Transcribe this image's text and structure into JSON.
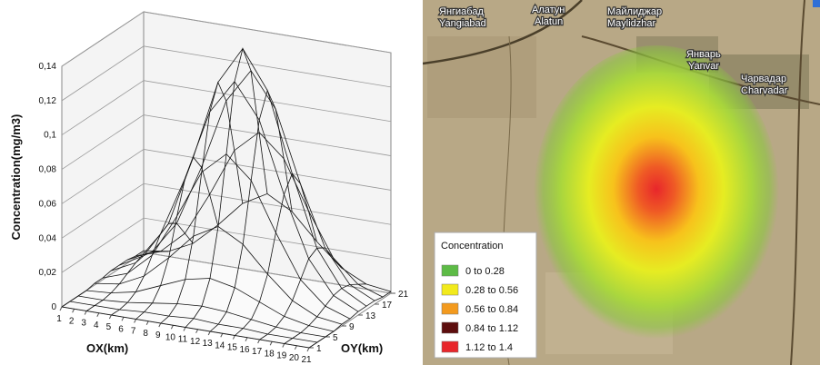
{
  "chart_data": [
    {
      "type": "surface",
      "zlabel": "Concentration(mg/m3)",
      "xlabel": "OX(km)",
      "ylabel": "OY(km)",
      "xlim": [
        1,
        21
      ],
      "ylim": [
        1,
        21
      ],
      "zlim": [
        0,
        0.14
      ],
      "xticks": [
        1,
        2,
        3,
        4,
        5,
        6,
        7,
        8,
        9,
        10,
        11,
        12,
        13,
        14,
        15,
        16,
        17,
        18,
        19,
        20,
        21
      ],
      "yticks": [
        1,
        5,
        9,
        13,
        17,
        21
      ],
      "zticks": [
        0,
        {
          "value": 0.02,
          "label": "0,02"
        },
        {
          "value": 0.04,
          "label": "0,04"
        },
        {
          "value": 0.06,
          "label": "0,06"
        },
        {
          "value": 0.08,
          "label": "0,08"
        },
        {
          "value": 0.1,
          "label": "0,1"
        },
        {
          "value": 0.12,
          "label": "0,12"
        },
        {
          "value": 0.14,
          "label": "0,14"
        }
      ],
      "x": [
        1,
        3,
        5,
        7,
        9,
        11,
        13,
        15,
        17,
        19,
        21
      ],
      "y": [
        1,
        3,
        5,
        7,
        9,
        11,
        13,
        15,
        17,
        19,
        21
      ],
      "z": [
        [
          0,
          0,
          0,
          0,
          0,
          0,
          0,
          0,
          0,
          0,
          0
        ],
        [
          0,
          0,
          0,
          0.001,
          0.001,
          0.002,
          0.001,
          0.001,
          0,
          0,
          0
        ],
        [
          0,
          0,
          0.001,
          0.003,
          0.005,
          0.006,
          0.005,
          0.003,
          0.001,
          0,
          0
        ],
        [
          0,
          0.001,
          0.004,
          0.01,
          0.016,
          0.019,
          0.016,
          0.01,
          0.004,
          0.001,
          0
        ],
        [
          0.001,
          0.003,
          0.01,
          0.023,
          0.038,
          0.046,
          0.038,
          0.023,
          0.01,
          0.003,
          0.001
        ],
        [
          0.001,
          0.006,
          0.019,
          0.044,
          0.072,
          0.085,
          0.072,
          0.044,
          0.019,
          0.006,
          0.001
        ],
        [
          0.002,
          0.009,
          0.028,
          0.063,
          0.104,
          0.124,
          0.104,
          0.063,
          0.028,
          0.009,
          0.002
        ],
        [
          0.002,
          0.01,
          0.031,
          0.072,
          0.118,
          0.14,
          0.118,
          0.072,
          0.031,
          0.01,
          0.002
        ],
        [
          0.002,
          0.009,
          0.028,
          0.063,
          0.104,
          0.124,
          0.104,
          0.063,
          0.028,
          0.009,
          0.002
        ],
        [
          0.001,
          0.006,
          0.019,
          0.044,
          0.072,
          0.085,
          0.072,
          0.044,
          0.019,
          0.006,
          0.001
        ],
        [
          0.001,
          0.003,
          0.01,
          0.023,
          0.038,
          0.046,
          0.038,
          0.023,
          0.01,
          0.003,
          0.001
        ]
      ]
    },
    {
      "type": "map",
      "legend_title": "Concentration",
      "series": [
        {
          "name": "0 to 0.28",
          "color": "#5dbb46"
        },
        {
          "name": "0.28 to 0.56",
          "color": "#f2ea1c"
        },
        {
          "name": "0.56 to 0.84",
          "color": "#f39a1e"
        },
        {
          "name": "0.84 to 1.12",
          "color": "#5c0d0d"
        },
        {
          "name": "1.12 to 1.4",
          "color": "#e8262b"
        }
      ],
      "places": [
        "Янгиабад",
        "Yangiabad",
        "Алатун",
        "Alatun",
        "Майлиджар",
        "Maylidzhar",
        "Январь",
        "Yanvar",
        "Чарвадар",
        "Charvadar"
      ]
    }
  ]
}
